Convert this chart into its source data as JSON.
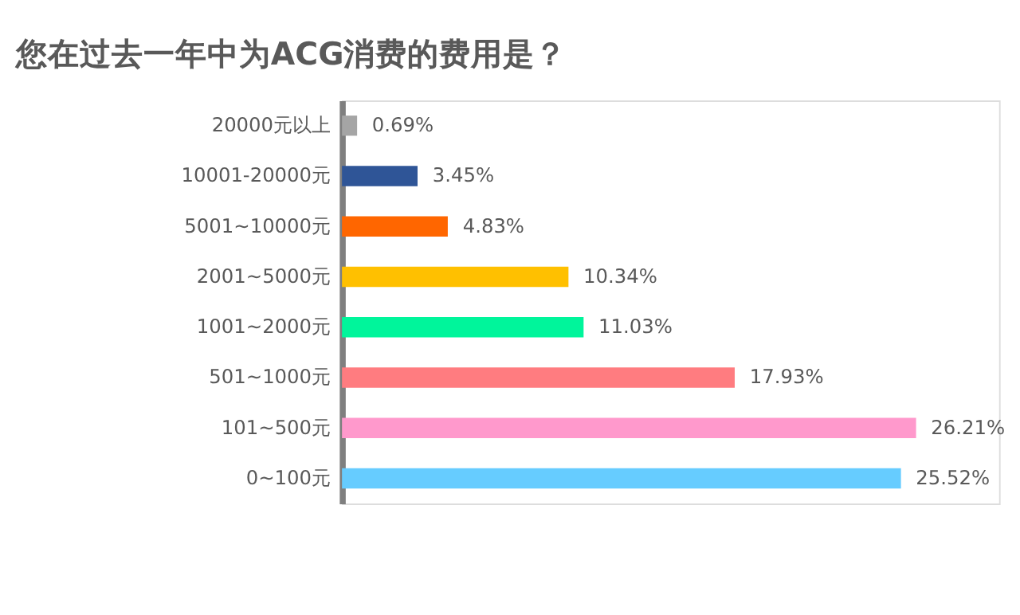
{
  "chart_data": {
    "type": "bar",
    "orientation": "horizontal",
    "title": "您在过去一年中为ACG消费的费用是？",
    "categories": [
      "20000元以上",
      "10001-20000元",
      "5001~10000元",
      "2001~5000元",
      "1001~2000元",
      "501~1000元",
      "101~500元",
      "0~100元"
    ],
    "values": [
      0.69,
      3.45,
      4.83,
      10.34,
      11.03,
      17.93,
      26.21,
      25.52
    ],
    "value_labels": [
      "0.69%",
      "3.45%",
      "4.83%",
      "10.34%",
      "11.03%",
      "17.93%",
      "26.21%",
      "25.52%"
    ],
    "colors": [
      "#a5a5a5",
      "#2f5597",
      "#ff6600",
      "#ffc000",
      "#00f59b",
      "#ff7c80",
      "#ff99cc",
      "#66ccff"
    ],
    "xlim": [
      0,
      30
    ]
  }
}
